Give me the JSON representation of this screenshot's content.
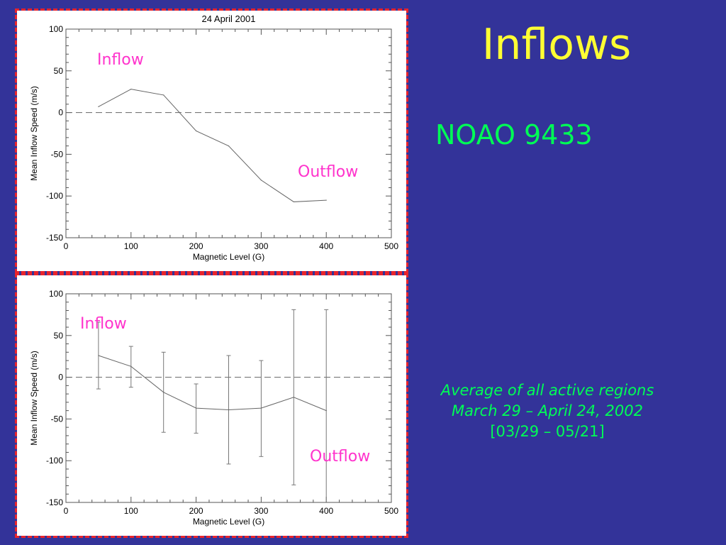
{
  "slide": {
    "title": "Inflows",
    "region": "NOAO 9433",
    "caption": {
      "line1": "Average of all active regions",
      "line2": "March 29 – April 24, 2002",
      "line3": "[03/29 – 05/21]"
    }
  },
  "colors": {
    "background": "#333399",
    "title": "#ffff33",
    "text_green": "#00ff55",
    "annotation": "#ff33cc",
    "panel_border": "#e8242c"
  },
  "chart_data": [
    {
      "type": "line",
      "title": "24 April 2001",
      "xlabel": "Magnetic Level (G)",
      "ylabel": "Mean Inflow Speed (m/s)",
      "xlim": [
        0,
        500
      ],
      "ylim": [
        -150,
        100
      ],
      "x_ticks": [
        "0",
        "100",
        "200",
        "300",
        "400",
        "500"
      ],
      "y_ticks": [
        "100",
        "50",
        "0",
        "-50",
        "-100",
        "-150"
      ],
      "zero_line": "dashed",
      "annotations": [
        "Inflow",
        "Outflow"
      ],
      "x": [
        50,
        100,
        150,
        200,
        250,
        300,
        350,
        400
      ],
      "values": [
        7,
        28,
        21,
        -22,
        -40,
        -81,
        -107,
        -105
      ]
    },
    {
      "type": "line",
      "title": "",
      "xlabel": "Magnetic Level (G)",
      "ylabel": "Mean Inflow Speed (m/s)",
      "xlim": [
        0,
        500
      ],
      "ylim": [
        -150,
        100
      ],
      "x_ticks": [
        "0",
        "100",
        "200",
        "300",
        "400",
        "500"
      ],
      "y_ticks": [
        "100",
        "50",
        "0",
        "-50",
        "-100",
        "-150"
      ],
      "zero_line": "dashed",
      "annotations": [
        "Inflow",
        "Outflow"
      ],
      "x": [
        50,
        100,
        150,
        200,
        250,
        300,
        350,
        400
      ],
      "values": [
        26,
        13,
        -18,
        -37,
        -39,
        -37,
        -24,
        -40
      ],
      "error_low": [
        -14,
        -12,
        -66,
        -67,
        -104,
        -95,
        -129,
        -160
      ],
      "error_high": [
        66,
        37,
        30,
        -8,
        26,
        20,
        81,
        81
      ]
    }
  ]
}
